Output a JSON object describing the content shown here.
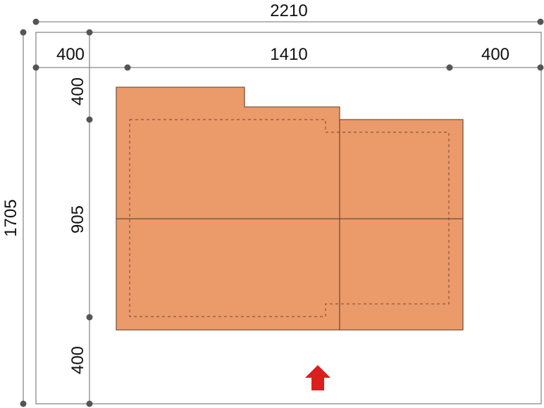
{
  "dimensions": {
    "total_width": "2210",
    "left_setback": "400",
    "building_width": "1410",
    "right_setback": "400",
    "total_depth": "1705",
    "top_setback": "400",
    "building_depth": "905",
    "bottom_setback": "400"
  },
  "colors": {
    "building_fill": "#EB9A6A",
    "building_outline": "#7a5540",
    "entrance_arrow": "#D9201E",
    "dimension_line": "#8a8a8a"
  },
  "icons": {
    "entrance": "arrow-up-icon"
  }
}
